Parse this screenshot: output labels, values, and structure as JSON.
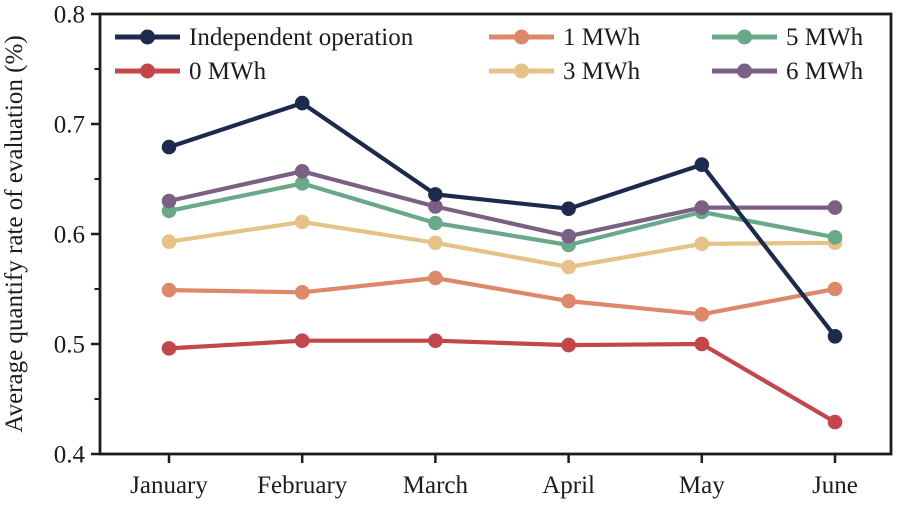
{
  "chart_data": {
    "type": "line",
    "title": "",
    "xlabel": "",
    "ylabel": "Average quantify rate of evaluation (%)",
    "categories": [
      "January",
      "February",
      "March",
      "April",
      "May",
      "June"
    ],
    "series": [
      {
        "name": "Independent operation",
        "color": "#1c2a4e",
        "values": [
          0.679,
          0.719,
          0.636,
          0.623,
          0.663,
          0.507
        ]
      },
      {
        "name": "0 MWh",
        "color": "#c3474a",
        "values": [
          0.496,
          0.503,
          0.503,
          0.499,
          0.5,
          0.429
        ]
      },
      {
        "name": "1 MWh",
        "color": "#dd8969",
        "values": [
          0.549,
          0.547,
          0.56,
          0.539,
          0.527,
          0.55
        ]
      },
      {
        "name": "3 MWh",
        "color": "#e6c289",
        "values": [
          0.593,
          0.611,
          0.592,
          0.57,
          0.591,
          0.592
        ]
      },
      {
        "name": "5 MWh",
        "color": "#68a98a",
        "values": [
          0.621,
          0.646,
          0.61,
          0.59,
          0.62,
          0.597
        ]
      },
      {
        "name": "6 MWh",
        "color": "#7a6184",
        "values": [
          0.63,
          0.657,
          0.625,
          0.598,
          0.624,
          0.624
        ]
      }
    ],
    "ylim": [
      0.4,
      0.8
    ],
    "yticks": [
      0.4,
      0.5,
      0.6,
      0.7,
      0.8
    ],
    "ytick_labels": [
      "0.4",
      "0.5",
      "0.6",
      "0.7",
      "0.8"
    ],
    "minor_yticks": [
      0.45,
      0.55,
      0.65,
      0.75
    ],
    "grid": false,
    "legend_position": "upper-left-inside",
    "legend_columns": 3,
    "axis_color": "#1c1c1c",
    "background_color": "#ffffff"
  }
}
